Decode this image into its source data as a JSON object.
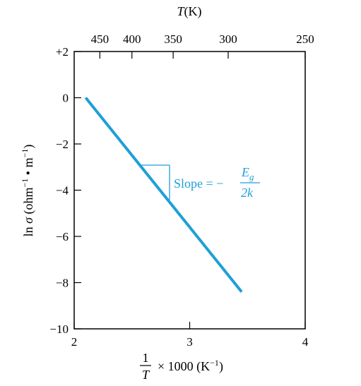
{
  "chart_data": {
    "type": "line",
    "x": [
      2.1,
      3.45
    ],
    "y": [
      0,
      -8.4
    ],
    "xlim": [
      2,
      4
    ],
    "ylim": [
      -10,
      2
    ],
    "x_ticks": [
      2,
      3,
      4
    ],
    "x_tick_labels": [
      "2",
      "3",
      "4"
    ],
    "y_ticks": [
      2,
      0,
      -2,
      -4,
      -6,
      -8,
      -10
    ],
    "y_tick_labels": [
      "+2",
      "0",
      "−2",
      "−4",
      "−6",
      "−8",
      "−10"
    ],
    "top_axis": {
      "label_T": "T",
      "label_unit": "(K)",
      "ticks_K": [
        450,
        400,
        350,
        300,
        250
      ],
      "tick_labels": [
        "450",
        "400",
        "350",
        "300",
        "250"
      ]
    },
    "xlabel": {
      "frac_num": "1",
      "frac_den": "T",
      "rest": "× 1000 (K",
      "exp": "−1",
      "close": ")"
    },
    "ylabel": {
      "prefix": "ln ",
      "sigma": "σ",
      "open": " (ohm",
      "exp1": "−1",
      "mid": " • m",
      "exp2": "−1",
      "close": ")"
    },
    "annotation": {
      "prefix": "Slope = −",
      "num_main": "E",
      "num_sub": "g",
      "den": "2k"
    },
    "colors": {
      "line": "#1e9fd8",
      "axes": "#000000"
    },
    "grid": false
  }
}
